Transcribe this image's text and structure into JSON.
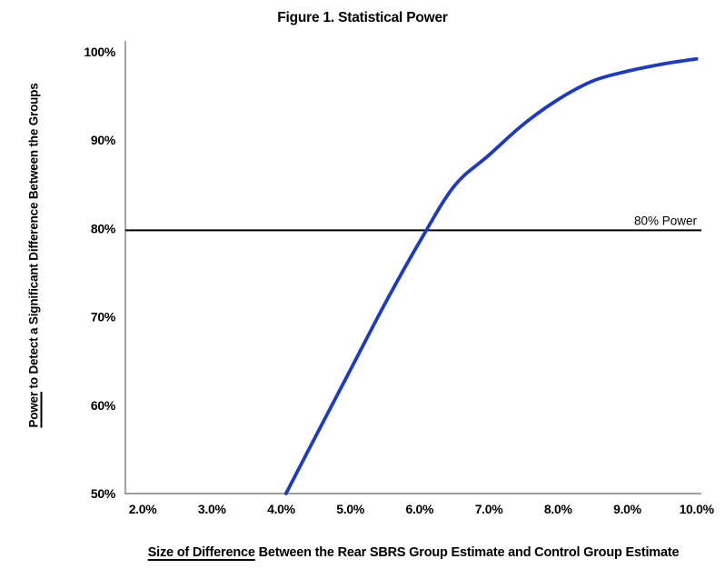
{
  "figure": {
    "background": "#ffffff",
    "text_color": "#000000",
    "axis_color": "#7f7f7f"
  },
  "chart_data": {
    "type": "line",
    "title": "Figure 1. Statistical Power",
    "xlabel": {
      "underlined": "Size of Difference",
      "rest": " Between the Rear SBRS Group Estimate and Control Group Estimate"
    },
    "ylabel": {
      "underlined": "Power",
      "rest": " to Detect a Significant Difference Between the Groups"
    },
    "x_axis": {
      "min": 1.75,
      "max": 10.07,
      "ticks": [
        {
          "value": 2,
          "label": "2.0%"
        },
        {
          "value": 3,
          "label": "3.0%"
        },
        {
          "value": 4,
          "label": "4.0%"
        },
        {
          "value": 5,
          "label": "5.0%"
        },
        {
          "value": 6,
          "label": "6.0%"
        },
        {
          "value": 7,
          "label": "7.0%"
        },
        {
          "value": 8,
          "label": "8.0%"
        },
        {
          "value": 9,
          "label": "9.0%"
        },
        {
          "value": 10,
          "label": "10.0%"
        }
      ]
    },
    "y_axis": {
      "min": 50,
      "max": 100,
      "ticks": [
        {
          "value": 100,
          "label": "100%"
        },
        {
          "value": 90,
          "label": "90%"
        },
        {
          "value": 80,
          "label": "80%"
        },
        {
          "value": 70,
          "label": "70%"
        },
        {
          "value": 60,
          "label": "60%"
        },
        {
          "value": 50,
          "label": "50%"
        }
      ]
    },
    "grid": false,
    "legend": "none",
    "series": [
      {
        "name": "statistical-power-curve",
        "color": "#1c3ac6",
        "stroke_width": 3.8,
        "points": [
          [
            4.07,
            50.0
          ],
          [
            4.5,
            56.5
          ],
          [
            5.0,
            64.0
          ],
          [
            5.5,
            71.5
          ],
          [
            6.0,
            78.5
          ],
          [
            6.5,
            84.8
          ],
          [
            7.0,
            88.3
          ],
          [
            7.5,
            91.8
          ],
          [
            8.0,
            94.6
          ],
          [
            8.5,
            96.7
          ],
          [
            9.0,
            97.8
          ],
          [
            9.5,
            98.6
          ],
          [
            10.0,
            99.2
          ]
        ]
      }
    ],
    "reference_line": {
      "y": 79.8,
      "label": "80% Power",
      "color": "#000000",
      "stroke_width": 2
    }
  }
}
